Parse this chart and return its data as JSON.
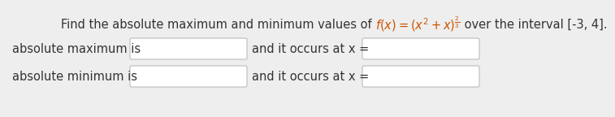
{
  "title_normal1": "Find the absolute maximum and minimum values of ",
  "title_formula": "f(x) = (x² + x)",
  "title_exp": "2/3",
  "title_normal2": " over the interval [-3, 4].",
  "label_max": "absolute maximum is",
  "label_min": "absolute minimum is",
  "occurs_text": "and it occurs at x =",
  "bg_color": "#eeeeee",
  "box_color": "#ffffff",
  "box_border": "#bbbbbb",
  "text_color": "#333333",
  "orange_color": "#cc5500",
  "font_size": 10.5,
  "title_font_size": 10.5
}
